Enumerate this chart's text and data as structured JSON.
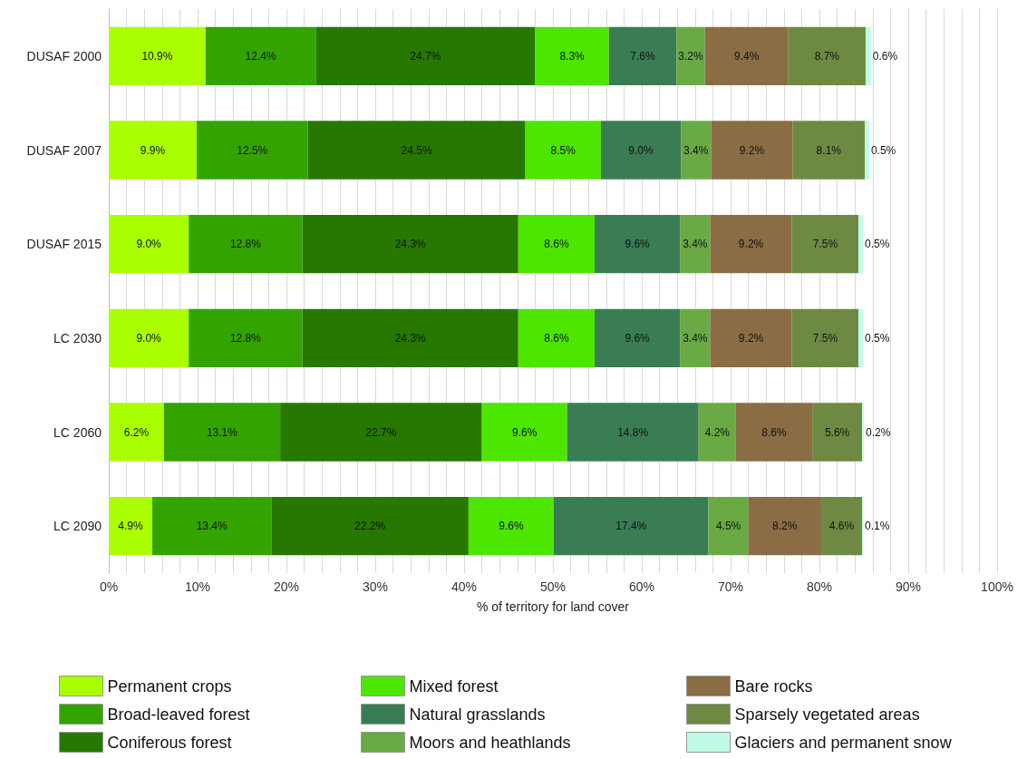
{
  "chart_data": {
    "type": "bar",
    "orientation": "horizontal",
    "stacked": true,
    "xlabel": "% of territory for land cover",
    "categories": [
      "DUSAF 2000",
      "DUSAF 2007",
      "DUSAF 2015",
      "LC 2030",
      "LC 2060",
      "LC 2090"
    ],
    "series": [
      {
        "name": "Permanent crops",
        "color": "#aaff00",
        "values": [
          10.9,
          9.9,
          9.0,
          9.0,
          6.2,
          4.9
        ],
        "value_labels": [
          "10.9%",
          "9.9%",
          "9.0%",
          "9.0%",
          "6.2%",
          "4.9%"
        ]
      },
      {
        "name": "Broad-leaved forest",
        "color": "#33a300",
        "values": [
          12.4,
          12.5,
          12.8,
          12.8,
          13.1,
          13.4
        ],
        "value_labels": [
          "12.4%",
          "12.5%",
          "12.8%",
          "12.8%",
          "13.1%",
          "13.4%"
        ]
      },
      {
        "name": "Coniferous forest",
        "color": "#267800",
        "values": [
          24.7,
          24.5,
          24.3,
          24.3,
          22.7,
          22.2
        ],
        "value_labels": [
          "24.7%",
          "24.5%",
          "24.3%",
          "24.3%",
          "22.7%",
          "22.2%"
        ]
      },
      {
        "name": "Mixed forest",
        "color": "#4de600",
        "values": [
          8.3,
          8.5,
          8.6,
          8.6,
          9.6,
          9.6
        ],
        "value_labels": [
          "8.3%",
          "8.5%",
          "8.6%",
          "8.6%",
          "9.6%",
          "9.6%"
        ]
      },
      {
        "name": "Natural grasslands",
        "color": "#3a7d55",
        "values": [
          7.6,
          9.0,
          9.6,
          9.6,
          14.8,
          17.4
        ],
        "value_labels": [
          "7.6%",
          "9.0%",
          "9.6%",
          "9.6%",
          "14.8%",
          "17.4%"
        ]
      },
      {
        "name": "Moors and heathlands",
        "color": "#6aaa45",
        "values": [
          3.2,
          3.4,
          3.4,
          3.4,
          4.2,
          4.5
        ],
        "value_labels": [
          "3.2%",
          "3.4%",
          "3.4%",
          "3.4%",
          "4.2%",
          "4.5%"
        ]
      },
      {
        "name": "Bare rocks",
        "color": "#8a6d45",
        "values": [
          9.4,
          9.2,
          9.2,
          9.2,
          8.6,
          8.2
        ],
        "value_labels": [
          "9.4%",
          "9.2%",
          "9.2%",
          "9.2%",
          "8.6%",
          "8.2%"
        ]
      },
      {
        "name": "Sparsely vegetated areas",
        "color": "#6e8a42",
        "values": [
          8.7,
          8.1,
          7.5,
          7.5,
          5.6,
          4.6
        ],
        "value_labels": [
          "8.7%",
          "8.1%",
          "7.5%",
          "7.5%",
          "5.6%",
          "4.6%"
        ]
      },
      {
        "name": "Glaciers and permanent snow",
        "color": "#c0fbe8",
        "values": [
          0.6,
          0.5,
          0.5,
          0.5,
          0.2,
          0.1
        ],
        "value_labels": [
          "0.6%",
          "0.5%",
          "0.5%",
          "0.5%",
          "0.2%",
          "0.1%"
        ]
      }
    ],
    "xlim": [
      0,
      100
    ],
    "xticks": [
      {
        "value": 0,
        "label": "0%"
      },
      {
        "value": 2,
        "label": null
      },
      {
        "value": 4,
        "label": null
      },
      {
        "value": 6,
        "label": null
      },
      {
        "value": 8,
        "label": null
      },
      {
        "value": 10,
        "label": "10%"
      },
      {
        "value": 12,
        "label": null
      },
      {
        "value": 14,
        "label": null
      },
      {
        "value": 16,
        "label": null
      },
      {
        "value": 18,
        "label": null
      },
      {
        "value": 20,
        "label": "20%"
      },
      {
        "value": 22,
        "label": null
      },
      {
        "value": 24,
        "label": null
      },
      {
        "value": 26,
        "label": null
      },
      {
        "value": 28,
        "label": null
      },
      {
        "value": 30,
        "label": "30%"
      },
      {
        "value": 32,
        "label": null
      },
      {
        "value": 34,
        "label": null
      },
      {
        "value": 36,
        "label": null
      },
      {
        "value": 38,
        "label": null
      },
      {
        "value": 40,
        "label": "40%"
      },
      {
        "value": 42,
        "label": null
      },
      {
        "value": 44,
        "label": null
      },
      {
        "value": 46,
        "label": null
      },
      {
        "value": 48,
        "label": null
      },
      {
        "value": 50,
        "label": "50%"
      },
      {
        "value": 52,
        "label": null
      },
      {
        "value": 54,
        "label": null
      },
      {
        "value": 56,
        "label": null
      },
      {
        "value": 58,
        "label": null
      },
      {
        "value": 60,
        "label": "60%"
      },
      {
        "value": 62,
        "label": null
      },
      {
        "value": 64,
        "label": null
      },
      {
        "value": 66,
        "label": null
      },
      {
        "value": 68,
        "label": null
      },
      {
        "value": 70,
        "label": "70%"
      },
      {
        "value": 72,
        "label": null
      },
      {
        "value": 74,
        "label": null
      },
      {
        "value": 76,
        "label": null
      },
      {
        "value": 78,
        "label": null
      },
      {
        "value": 80,
        "label": "80%"
      },
      {
        "value": 82,
        "label": null
      },
      {
        "value": 84,
        "label": null
      },
      {
        "value": 86,
        "label": null
      },
      {
        "value": 88,
        "label": null
      },
      {
        "value": 90,
        "label": "90%"
      },
      {
        "value": 92,
        "label": null
      },
      {
        "value": 94,
        "label": null
      },
      {
        "value": 96,
        "label": null
      },
      {
        "value": 98,
        "label": null
      },
      {
        "value": 100,
        "label": "100%"
      }
    ],
    "grid": "x",
    "legend": "bottom"
  }
}
